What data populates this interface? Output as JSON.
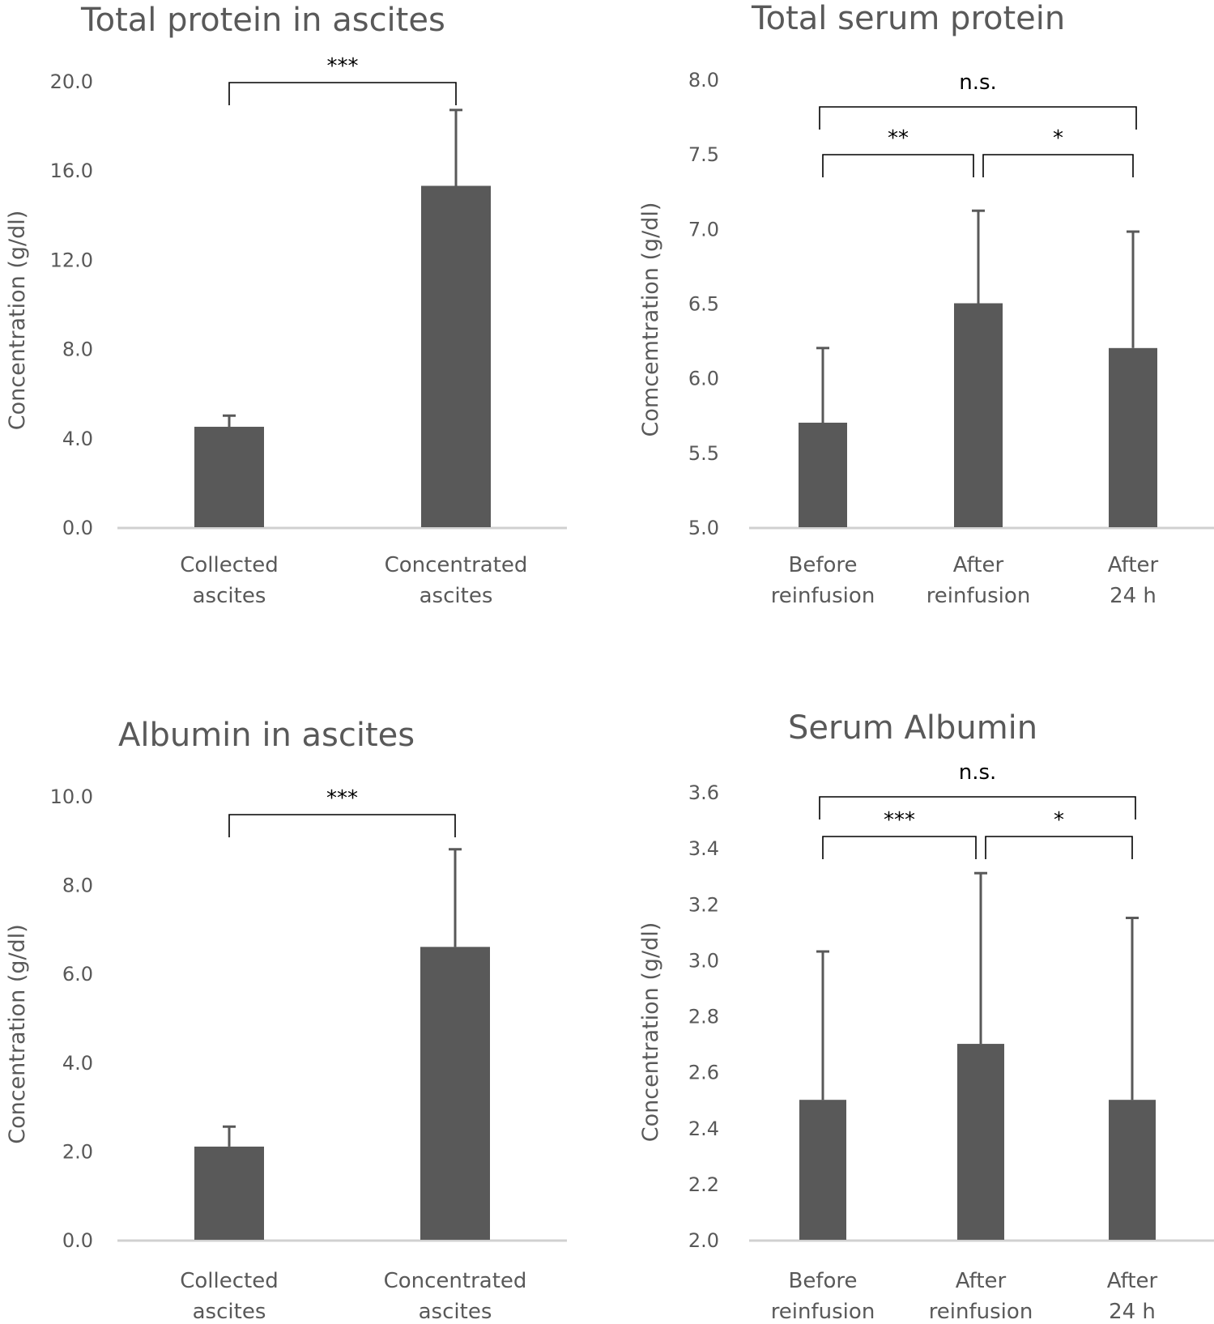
{
  "colors": {
    "bar": "#595959",
    "axis": "#d0d0d0",
    "text": "#595959",
    "bracket": "#000000"
  },
  "chart_data": [
    {
      "type": "bar",
      "title": "Total protein in ascites",
      "ylabel": "Concentration (g/dl)",
      "xlabel": "",
      "categories": [
        [
          "Collected",
          "ascites"
        ],
        [
          "Concentrated",
          "ascites"
        ]
      ],
      "values": [
        4.5,
        15.3
      ],
      "error_upper": [
        5.0,
        18.7
      ],
      "ylim": [
        0,
        20
      ],
      "yticks": [
        "0.0",
        "4.0",
        "8.0",
        "12.0",
        "16.0",
        "20.0"
      ],
      "significance": [
        {
          "from": 0,
          "to": 1,
          "label": "***",
          "level": 1
        }
      ]
    },
    {
      "type": "bar",
      "title": "Total serum protein",
      "ylabel": "Comcemtration (g/dl)",
      "xlabel": "",
      "categories": [
        [
          "Before",
          "reinfusion"
        ],
        [
          "After",
          "reinfusion"
        ],
        [
          "After",
          "24 h"
        ]
      ],
      "values": [
        5.7,
        6.5,
        6.2
      ],
      "error_upper": [
        6.2,
        7.12,
        6.98
      ],
      "ylim": [
        5,
        8
      ],
      "yticks": [
        "5.0",
        "5.5",
        "6.0",
        "6.5",
        "7.0",
        "7.5",
        "8.0"
      ],
      "significance": [
        {
          "from": 0,
          "to": 1,
          "label": "**",
          "level": 1
        },
        {
          "from": 1,
          "to": 2,
          "label": "*",
          "level": 1
        },
        {
          "from": 0,
          "to": 2,
          "label": "n.s.",
          "level": 2
        }
      ]
    },
    {
      "type": "bar",
      "title": "Albumin in ascites",
      "ylabel": "Concentration (g/dl)",
      "xlabel": "",
      "categories": [
        [
          "Collected",
          "ascites"
        ],
        [
          "Concentrated",
          "ascites"
        ]
      ],
      "values": [
        2.1,
        6.6
      ],
      "error_upper": [
        2.55,
        8.8
      ],
      "ylim": [
        0,
        10
      ],
      "yticks": [
        "0.0",
        "2.0",
        "4.0",
        "6.0",
        "8.0",
        "10.0"
      ],
      "significance": [
        {
          "from": 0,
          "to": 1,
          "label": "***",
          "level": 1
        }
      ]
    },
    {
      "type": "bar",
      "title": "Serum Albumin",
      "ylabel": "Concentration (g/dl)",
      "xlabel": "",
      "categories": [
        [
          "Before",
          "reinfusion"
        ],
        [
          "After",
          "reinfusion"
        ],
        [
          "After",
          "24 h"
        ]
      ],
      "values": [
        2.5,
        2.7,
        2.5
      ],
      "error_upper": [
        3.03,
        3.31,
        3.15
      ],
      "ylim": [
        2.0,
        3.6
      ],
      "yticks": [
        "2.0",
        "2.2",
        "2.4",
        "2.6",
        "2.8",
        "3.0",
        "3.2",
        "3.4",
        "3.6"
      ],
      "significance": [
        {
          "from": 0,
          "to": 1,
          "label": "***",
          "level": 1
        },
        {
          "from": 1,
          "to": 2,
          "label": "*",
          "level": 1
        },
        {
          "from": 0,
          "to": 2,
          "label": "n.s.",
          "level": 2
        }
      ]
    }
  ]
}
